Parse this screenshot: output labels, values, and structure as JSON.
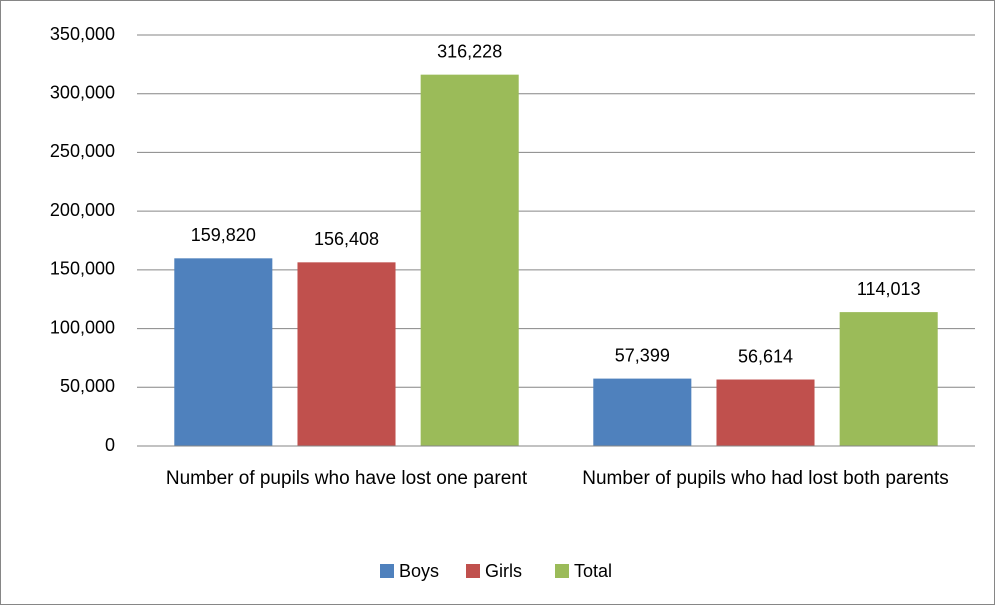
{
  "chart_data": {
    "type": "bar",
    "categories": [
      "Number of pupils who have lost one parent",
      "Number of pupils who had lost both parents"
    ],
    "series": [
      {
        "name": "Boys",
        "color": "#4f81bd",
        "values": [
          159820,
          57399
        ],
        "value_labels": [
          "159,820",
          "57,399"
        ]
      },
      {
        "name": "Girls",
        "color": "#c0504d",
        "values": [
          156408,
          56614
        ],
        "value_labels": [
          "156,408",
          "56,614"
        ]
      },
      {
        "name": "Total",
        "color": "#9bbb59",
        "values": [
          316228,
          114013
        ],
        "value_labels": [
          "316,228",
          "114,013"
        ]
      }
    ],
    "ylim": [
      0,
      350000
    ],
    "yticks": [
      {
        "value": 0,
        "label": "0"
      },
      {
        "value": 50000,
        "label": "50,000"
      },
      {
        "value": 100000,
        "label": "100,000"
      },
      {
        "value": 150000,
        "label": "150,000"
      },
      {
        "value": 200000,
        "label": "200,000"
      },
      {
        "value": 250000,
        "label": "250,000"
      },
      {
        "value": 300000,
        "label": "300,000"
      },
      {
        "value": 350000,
        "label": "350,000"
      }
    ],
    "grid": true,
    "legend": "bottom"
  }
}
